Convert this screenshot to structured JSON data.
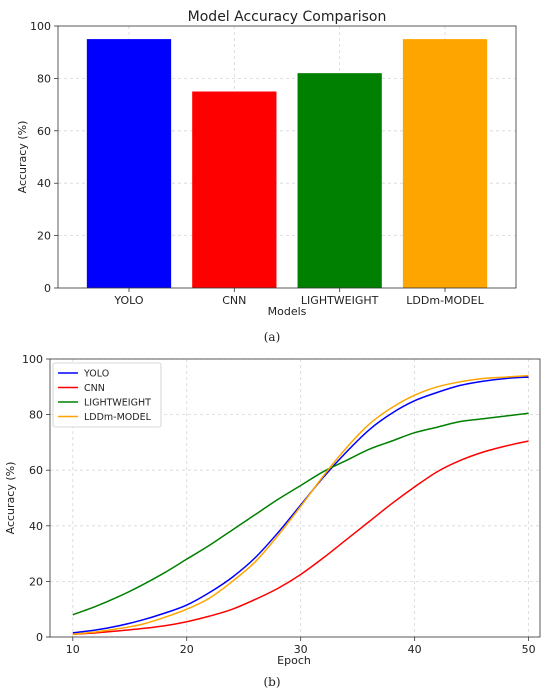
{
  "chart_data": [
    {
      "type": "bar",
      "title": "Model Accuracy Comparison",
      "xlabel": "Models",
      "ylabel": "Accuracy (%)",
      "categories": [
        "YOLO",
        "CNN",
        "LIGHTWEIGHT",
        "LDDm-MODEL"
      ],
      "values": [
        95,
        75,
        82,
        95
      ],
      "colors": [
        "#0000ff",
        "#ff0000",
        "#008000",
        "#ffa500"
      ],
      "ylim": [
        0,
        100
      ],
      "yticks": [
        0,
        20,
        40,
        60,
        80,
        100
      ],
      "grid": true,
      "caption": "(a)"
    },
    {
      "type": "line",
      "title": "",
      "xlabel": "Epoch",
      "ylabel": "Accuracy (%)",
      "xlim": [
        8,
        51
      ],
      "ylim": [
        0,
        100
      ],
      "xticks": [
        10,
        20,
        30,
        40,
        50
      ],
      "yticks": [
        0,
        20,
        40,
        60,
        80,
        100
      ],
      "grid": true,
      "legend_position": "top-left",
      "caption": "(b)",
      "x": [
        10,
        12,
        14,
        16,
        18,
        20,
        22,
        24,
        26,
        28,
        30,
        32,
        34,
        36,
        38,
        40,
        42,
        44,
        46,
        48,
        50
      ],
      "series": [
        {
          "name": "YOLO",
          "color": "#0000ff",
          "values": [
            1.5,
            2.5,
            4,
            6,
            8.5,
            11.5,
            16,
            21.5,
            28.5,
            37.5,
            47.5,
            57.5,
            66.5,
            74.5,
            80.5,
            85,
            88,
            90.5,
            92,
            93,
            93.5
          ]
        },
        {
          "name": "CNN",
          "color": "#ff0000",
          "values": [
            1,
            1.5,
            2.2,
            3,
            4,
            5.5,
            7.5,
            10,
            13.5,
            17.5,
            22.5,
            28.5,
            35,
            41.5,
            48,
            54,
            59.5,
            63.5,
            66.5,
            68.7,
            70.5
          ]
        },
        {
          "name": "LIGHTWEIGHT",
          "color": "#008000",
          "values": [
            8,
            11,
            14.5,
            18.5,
            23,
            28,
            33,
            38.5,
            44,
            49.5,
            54.5,
            59.5,
            63.5,
            67.5,
            70.5,
            73.5,
            75.5,
            77.5,
            78.5,
            79.5,
            80.5
          ]
        },
        {
          "name": "LDDm-MODEL",
          "color": "#ffa500",
          "values": [
            1,
            1.8,
            3,
            4.5,
            7,
            10,
            14,
            20,
            27,
            36.5,
            47,
            58,
            68,
            76.5,
            82.5,
            87,
            90,
            91.8,
            93,
            93.5,
            94
          ]
        }
      ]
    }
  ]
}
